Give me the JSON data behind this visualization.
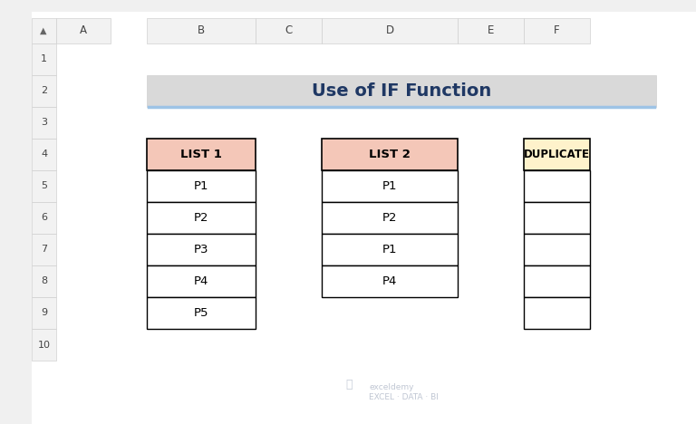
{
  "title": "Use of IF Function",
  "title_bg": "#d9d9d9",
  "title_border": "#9dc3e6",
  "title_fontsize": 14,
  "title_color": "#1f3864",
  "list1_header": "LIST 1",
  "list1_data": [
    "P1",
    "P2",
    "P3",
    "P4",
    "P5"
  ],
  "list1_header_bg": "#f4c7b8",
  "list2_header": "LIST 2",
  "list2_data": [
    "P1",
    "P2",
    "P1",
    "P4"
  ],
  "list2_header_bg": "#f4c7b8",
  "dup_header": "DUPLICATE",
  "dup_data": [
    "",
    "",
    "",
    "",
    ""
  ],
  "dup_header_bg": "#fef2cb",
  "cell_bg": "#ffffff",
  "border_color": "#000000",
  "text_color": "#000000",
  "excel_bg": "#ffffff",
  "header_row_bg": "#f2f2f2",
  "col_header_bg": "#f2f2f2",
  "row_header_bg": "#f2f2f2",
  "col_labels": [
    "A",
    "B",
    "C",
    "D",
    "E",
    "F"
  ],
  "row_labels": [
    "1",
    "2",
    "3",
    "4",
    "5",
    "6",
    "7",
    "8",
    "9",
    "10"
  ],
  "watermark_text": "exceldemy\nEXCEL · DATA · BI",
  "watermark_color": "#b0b8c8"
}
